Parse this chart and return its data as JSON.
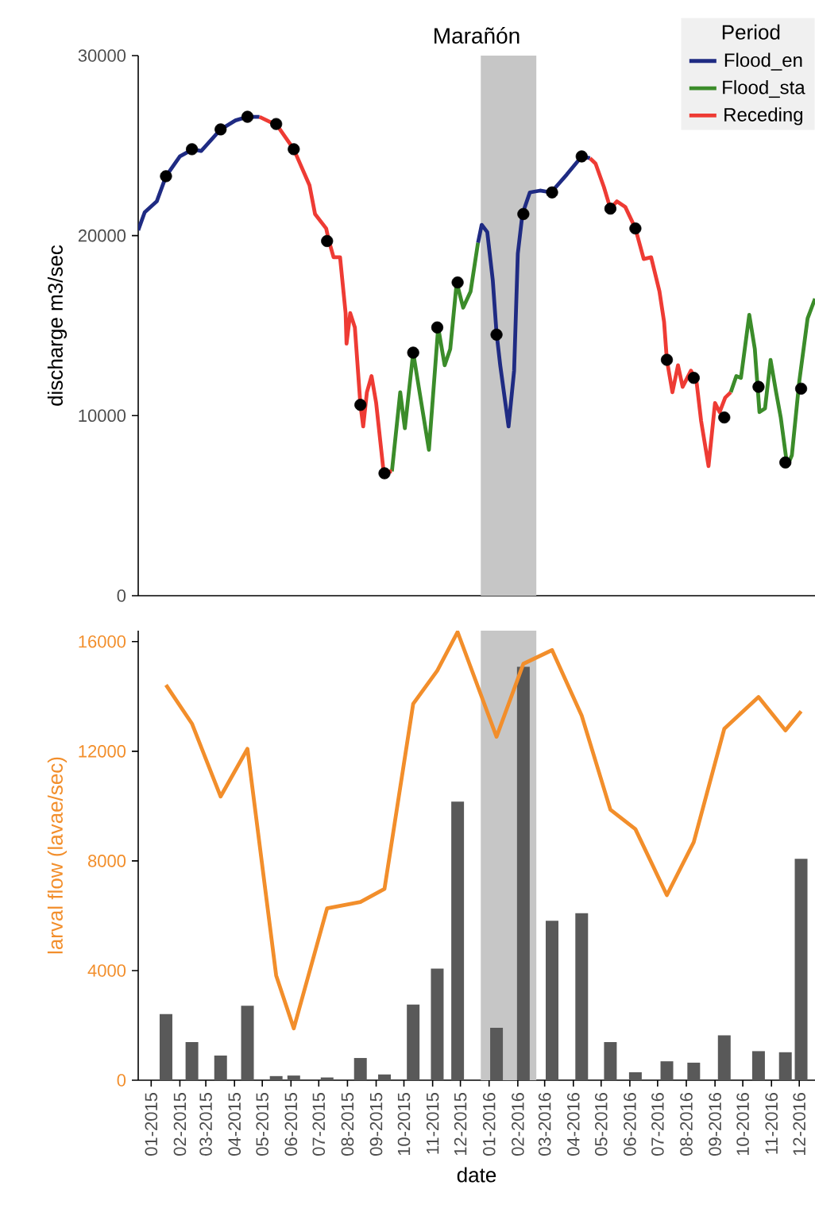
{
  "chart_data": [
    {
      "type": "line",
      "title": "Marañón",
      "ylabel": "discharge m3/sec",
      "legend_title": "Period",
      "legend": "top right",
      "tick_labels": "y",
      "xlim": [
        "2014-12-18",
        "2016-12-18"
      ],
      "ylim": [
        0,
        30000
      ],
      "yticks": [
        0,
        10000,
        20000,
        30000
      ],
      "bands": [
        {
          "axis": "x",
          "from": "2015-12-23",
          "to": "2016-02-21",
          "color": "#c6c6c6"
        }
      ],
      "series": [
        {
          "name": "Flood_en",
          "color": "#1f2b83",
          "x": [
            "2014-12-18",
            "2014-12-25",
            "2015-01-07",
            "2015-01-17",
            "2015-02-01",
            "2015-02-15",
            "2015-02-24",
            "2015-03-17",
            "2015-04-02",
            "2015-04-15",
            "2015-04-28",
            "2015-08-01",
            "2015-12-20",
            "2015-12-24",
            "2015-12-30",
            "2016-01-05",
            "2016-01-09",
            "2016-01-13",
            "2016-01-22",
            "2016-01-28",
            "2016-02-01",
            "2016-02-06",
            "2016-02-14",
            "2016-02-25",
            "2016-03-08",
            "2016-03-25",
            "2016-04-10",
            "2016-04-19"
          ],
          "values": [
            20300,
            21300,
            21900,
            23300,
            24400,
            24800,
            24700,
            25900,
            26400,
            26600,
            26600,
            null,
            19600,
            20600,
            20200,
            17500,
            14600,
            12800,
            9400,
            12500,
            19000,
            21200,
            22400,
            22500,
            22400,
            23400,
            24400,
            24300
          ]
        },
        {
          "name": "Flood_sta",
          "color": "#3b8c2a",
          "x": [
            "2015-09-18",
            "2015-09-27",
            "2015-10-02",
            "2015-10-11",
            "2015-10-28",
            "2015-11-07",
            "2015-11-14",
            "2015-11-20",
            "2015-11-27",
            "2015-12-04",
            "2015-12-12",
            "2015-12-20",
            "2016-06-01",
            "2016-09-18",
            "2016-09-24",
            "2016-09-29",
            "2016-10-08",
            "2016-10-14",
            "2016-10-19",
            "2016-10-25",
            "2016-10-31",
            "2016-11-06",
            "2016-11-11",
            "2016-11-18",
            "2016-11-23",
            "2016-12-01",
            "2016-12-10",
            "2016-12-18"
          ],
          "values": [
            6900,
            11300,
            9300,
            13500,
            8100,
            14900,
            12800,
            13700,
            17400,
            16000,
            16900,
            19600,
            null,
            11300,
            12200,
            12100,
            15600,
            13700,
            10200,
            10400,
            13100,
            11300,
            9900,
            7200,
            7800,
            11900,
            15400,
            16500
          ]
        },
        {
          "name": "Receding",
          "color": "#ee3b34",
          "x": [
            "2015-04-28",
            "2015-05-10",
            "2015-05-16",
            "2015-06-04",
            "2015-06-21",
            "2015-06-27",
            "2015-07-09",
            "2015-07-12",
            "2015-07-17",
            "2015-07-24",
            "2015-07-30",
            "2015-07-31",
            "2015-08-04",
            "2015-08-09",
            "2015-08-15",
            "2015-08-18",
            "2015-08-22",
            "2015-08-27",
            "2015-09-01",
            "2015-09-09",
            "2015-09-18",
            "2016-01-01",
            "2016-04-19",
            "2016-04-25",
            "2016-05-04",
            "2016-05-11",
            "2016-05-18",
            "2016-05-27",
            "2016-06-07",
            "2016-06-16",
            "2016-06-24",
            "2016-07-03",
            "2016-07-08",
            "2016-07-11",
            "2016-07-17",
            "2016-07-23",
            "2016-07-28",
            "2016-08-06",
            "2016-08-12",
            "2016-08-17",
            "2016-08-25",
            "2016-09-01",
            "2016-09-06",
            "2016-09-12",
            "2016-09-18"
          ],
          "values": [
            26600,
            26300,
            26200,
            24800,
            22800,
            21200,
            20400,
            19700,
            18800,
            18800,
            15700,
            14000,
            15700,
            14900,
            10600,
            9400,
            11300,
            12200,
            10700,
            6900,
            6900,
            null,
            24300,
            24000,
            22700,
            21500,
            21900,
            21600,
            20400,
            18700,
            18800,
            16900,
            15200,
            13100,
            11300,
            12800,
            11600,
            12500,
            11900,
            9700,
            7200,
            10700,
            10200,
            11000,
            11300
          ]
        },
        {
          "type": "scatter",
          "color": "#000000",
          "x": [
            "2015-01-17",
            "2015-02-14",
            "2015-03-17",
            "2015-04-15",
            "2015-05-16",
            "2015-06-04",
            "2015-07-10",
            "2015-08-15",
            "2015-09-10",
            "2015-10-11",
            "2015-11-06",
            "2015-11-28",
            "2016-01-09",
            "2016-02-07",
            "2016-03-09",
            "2016-04-10",
            "2016-05-11",
            "2016-06-07",
            "2016-07-11",
            "2016-08-09",
            "2016-09-11",
            "2016-10-18",
            "2016-11-16",
            "2016-12-03"
          ],
          "values": [
            23300,
            24800,
            25900,
            26600,
            26200,
            24800,
            19700,
            10600,
            6800,
            13500,
            14900,
            17400,
            14500,
            21200,
            22400,
            24400,
            21500,
            20400,
            13100,
            12100,
            9900,
            11600,
            7400,
            11500
          ]
        }
      ]
    },
    {
      "type": "bar",
      "xlabel": "date",
      "ylabel": "larval flow (lavae/sec)",
      "xlim": [
        "2014-12-18",
        "2016-12-18"
      ],
      "ylim": [
        0,
        16400
      ],
      "yticks": [
        0,
        4000,
        8000,
        12000,
        16000
      ],
      "xticks": [
        {
          "value": "2015-01-01",
          "label": "01-2015"
        },
        {
          "value": "2015-02-01",
          "label": "02-2015"
        },
        {
          "value": "2015-03-01",
          "label": "03-2015"
        },
        {
          "value": "2015-04-01",
          "label": "04-2015"
        },
        {
          "value": "2015-05-01",
          "label": "05-2015"
        },
        {
          "value": "2015-06-01",
          "label": "06-2015"
        },
        {
          "value": "2015-07-01",
          "label": "07-2015"
        },
        {
          "value": "2015-08-01",
          "label": "08-2015"
        },
        {
          "value": "2015-09-01",
          "label": "09-2015"
        },
        {
          "value": "2015-10-01",
          "label": "10-2015"
        },
        {
          "value": "2015-11-01",
          "label": "11-2015"
        },
        {
          "value": "2015-12-01",
          "label": "12-2015"
        },
        {
          "value": "2016-01-01",
          "label": "01-2016"
        },
        {
          "value": "2016-02-01",
          "label": "02-2016"
        },
        {
          "value": "2016-03-01",
          "label": "03-2016"
        },
        {
          "value": "2016-04-01",
          "label": "04-2016"
        },
        {
          "value": "2016-05-01",
          "label": "05-2016"
        },
        {
          "value": "2016-06-01",
          "label": "06-2016"
        },
        {
          "value": "2016-07-01",
          "label": "07-2016"
        },
        {
          "value": "2016-08-01",
          "label": "08-2016"
        },
        {
          "value": "2016-09-01",
          "label": "09-2016"
        },
        {
          "value": "2016-10-01",
          "label": "10-2016"
        },
        {
          "value": "2016-11-01",
          "label": "11-2016"
        },
        {
          "value": "2016-12-01",
          "label": "12-2016"
        }
      ],
      "bands": [
        {
          "axis": "x",
          "from": "2015-12-23",
          "to": "2016-02-21",
          "color": "#c6c6c6"
        }
      ],
      "series": [
        {
          "type": "bar",
          "color": "#595959",
          "x": [
            "2015-01-17",
            "2015-02-14",
            "2015-03-17",
            "2015-04-15",
            "2015-05-16",
            "2015-06-04",
            "2015-07-10",
            "2015-08-15",
            "2015-09-10",
            "2015-10-11",
            "2015-11-06",
            "2015-11-28",
            "2016-01-09",
            "2016-02-07",
            "2016-03-09",
            "2016-04-10",
            "2016-05-11",
            "2016-06-07",
            "2016-07-11",
            "2016-08-09",
            "2016-09-11",
            "2016-10-18",
            "2016-11-16",
            "2016-12-03"
          ],
          "values": [
            2410,
            1390,
            900,
            2720,
            150,
            170,
            100,
            810,
            210,
            2760,
            4070,
            10160,
            1910,
            15080,
            5820,
            6090,
            1390,
            290,
            690,
            640,
            1640,
            1060,
            1020,
            8080
          ]
        },
        {
          "type": "line",
          "color": "#f28e2b",
          "x": [
            "2015-01-17",
            "2015-02-14",
            "2015-03-17",
            "2015-04-15",
            "2015-05-16",
            "2015-06-04",
            "2015-07-10",
            "2015-08-15",
            "2015-09-10",
            "2015-10-11",
            "2015-11-06",
            "2015-11-28",
            "2016-01-09",
            "2016-02-07",
            "2016-03-09",
            "2016-04-10",
            "2016-05-11",
            "2016-06-07",
            "2016-07-11",
            "2016-08-09",
            "2016-09-11",
            "2016-10-18",
            "2016-11-16",
            "2016-12-03"
          ],
          "values": [
            14420,
            13010,
            10350,
            12090,
            3820,
            1890,
            6270,
            6500,
            6980,
            13730,
            14940,
            16350,
            12530,
            15190,
            15690,
            13300,
            9870,
            9160,
            6750,
            8680,
            12820,
            13980,
            12760,
            13460
          ]
        }
      ]
    }
  ]
}
